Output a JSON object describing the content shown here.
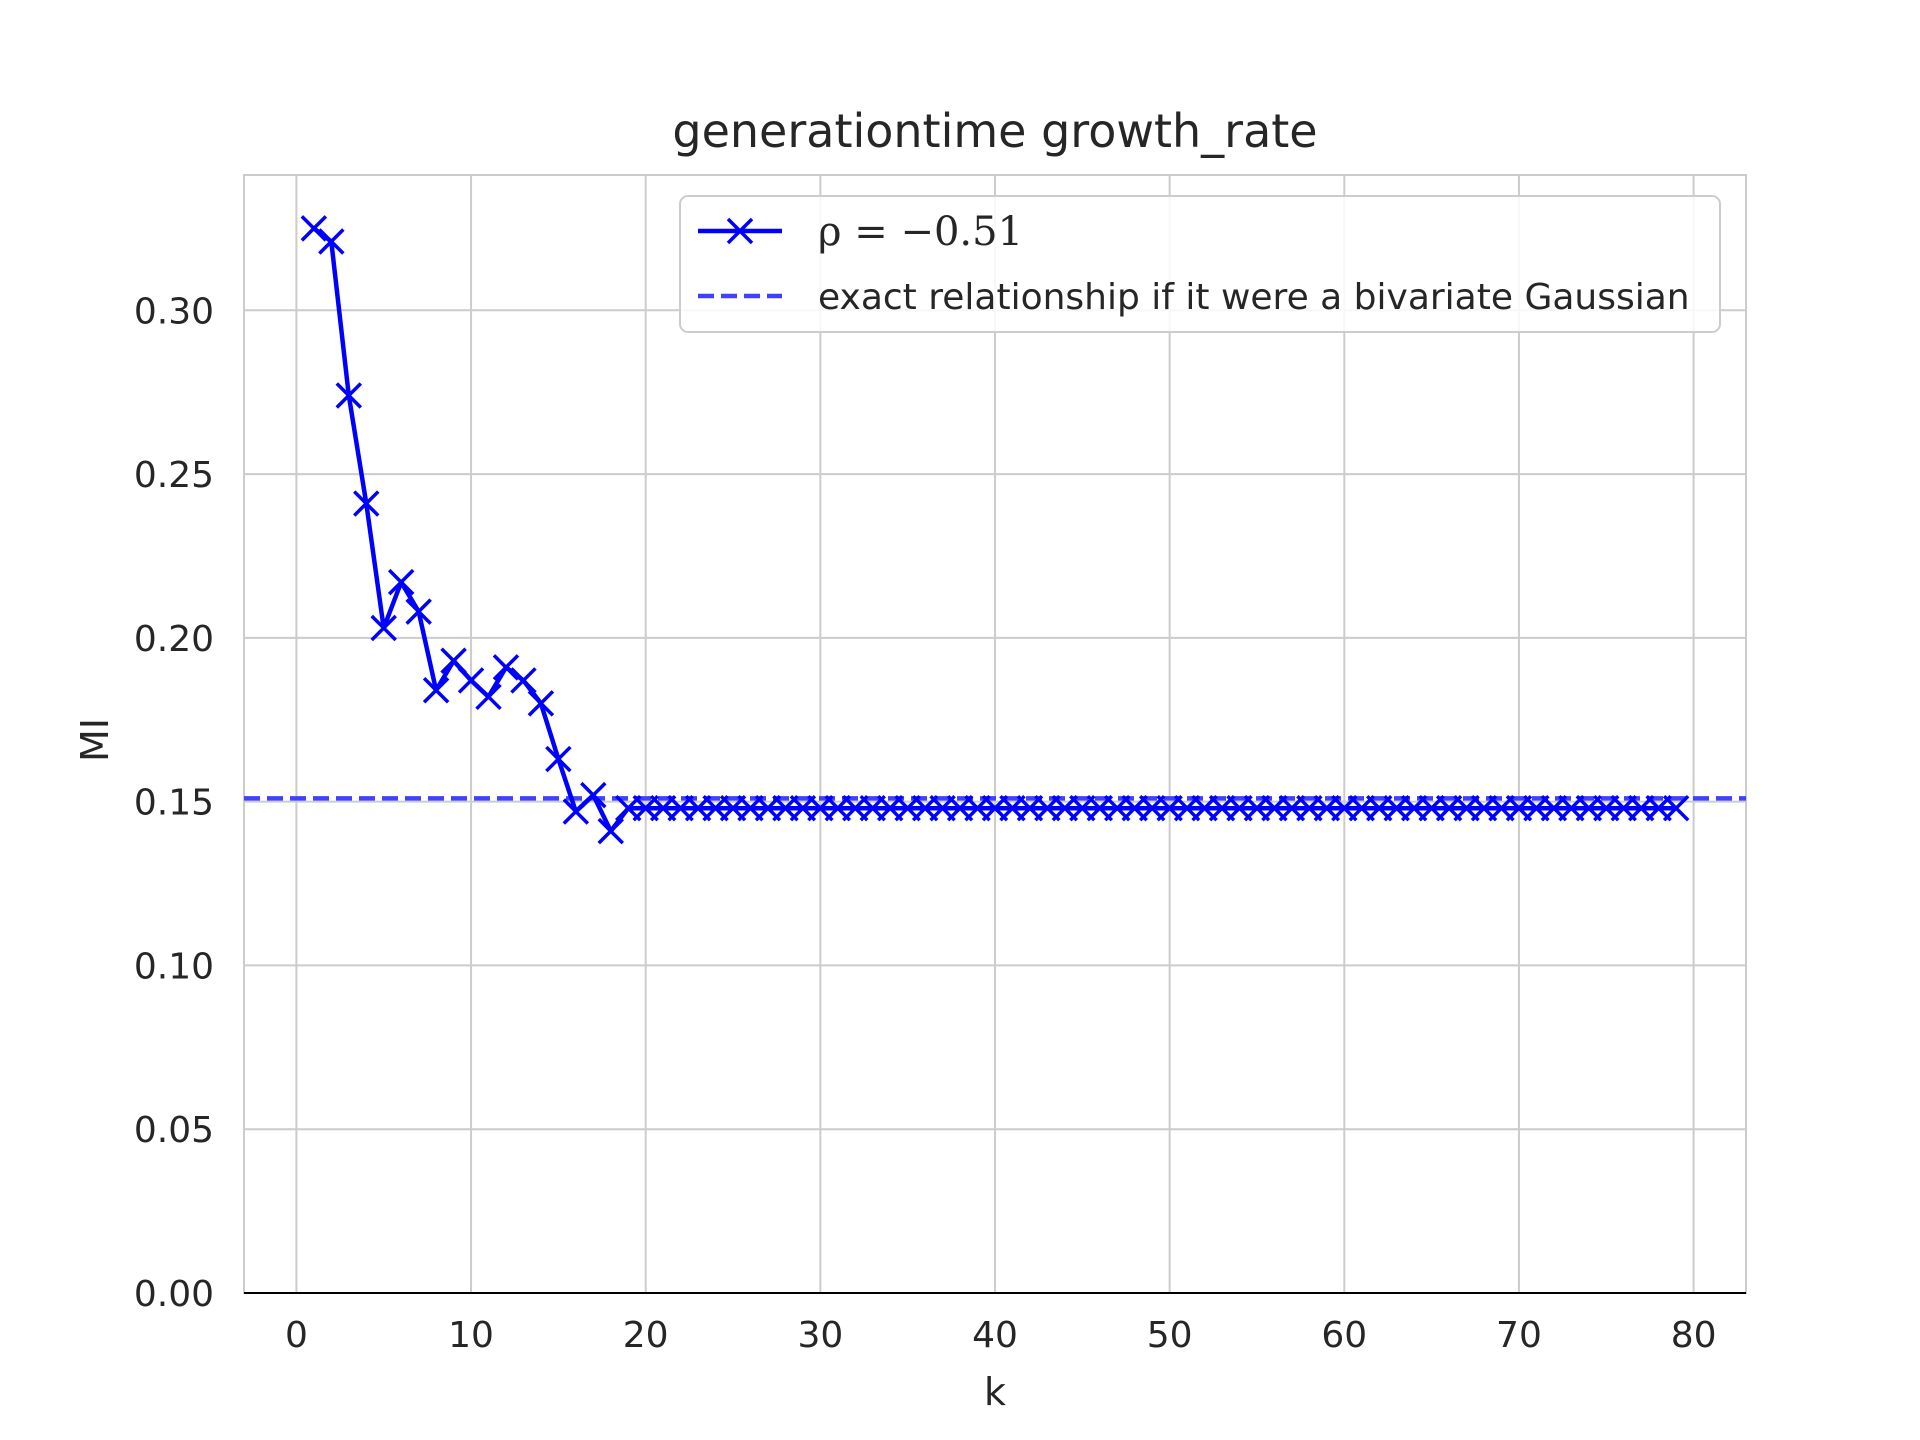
{
  "chart_data": {
    "type": "line",
    "title": "generationtime growth_rate",
    "xlabel": "k",
    "ylabel": "MI",
    "xlim": [
      -3,
      83
    ],
    "ylim": [
      0,
      0.3413
    ],
    "xticks": [
      0,
      10,
      20,
      30,
      40,
      50,
      60,
      70,
      80
    ],
    "xtick_labels": [
      "0",
      "10",
      "20",
      "30",
      "40",
      "50",
      "60",
      "70",
      "80"
    ],
    "yticks": [
      0,
      0.05,
      0.1,
      0.15,
      0.2,
      0.25,
      0.3
    ],
    "ytick_labels": [
      "0.00",
      "0.05",
      "0.10",
      "0.15",
      "0.20",
      "0.25",
      "0.30"
    ],
    "grid": true,
    "legend_position": "top-right",
    "series": [
      {
        "name": "ρ = −0.51",
        "style": "solid",
        "marker": "x",
        "color": "#0000ff",
        "x": [
          1,
          2,
          3,
          4,
          5,
          6,
          7,
          8,
          9,
          10,
          11,
          12,
          13,
          14,
          15,
          16,
          17,
          18,
          19,
          20,
          21,
          22,
          23,
          24,
          25,
          26,
          27,
          28,
          29,
          30,
          31,
          32,
          33,
          34,
          35,
          36,
          37,
          38,
          39,
          40,
          41,
          42,
          43,
          44,
          45,
          46,
          47,
          48,
          49,
          50,
          51,
          52,
          53,
          54,
          55,
          56,
          57,
          58,
          59,
          60,
          61,
          62,
          63,
          64,
          65,
          66,
          67,
          68,
          69,
          70,
          71,
          72,
          73,
          74,
          75,
          76,
          77,
          78,
          79
        ],
        "y": [
          0.325,
          0.321,
          0.274,
          0.241,
          0.203,
          0.217,
          0.208,
          0.184,
          0.193,
          0.187,
          0.182,
          0.191,
          0.187,
          0.18,
          0.163,
          0.147,
          0.152,
          0.141,
          0.148,
          0.148,
          0.148,
          0.148,
          0.148,
          0.148,
          0.148,
          0.148,
          0.148,
          0.148,
          0.148,
          0.148,
          0.148,
          0.148,
          0.148,
          0.148,
          0.148,
          0.148,
          0.148,
          0.148,
          0.148,
          0.148,
          0.148,
          0.148,
          0.148,
          0.148,
          0.148,
          0.148,
          0.148,
          0.148,
          0.148,
          0.148,
          0.148,
          0.148,
          0.148,
          0.148,
          0.148,
          0.148,
          0.148,
          0.148,
          0.148,
          0.148,
          0.148,
          0.148,
          0.148,
          0.148,
          0.148,
          0.148,
          0.148,
          0.148,
          0.148,
          0.148,
          0.148,
          0.148,
          0.148,
          0.148,
          0.148,
          0.148,
          0.148,
          0.148,
          0.148
        ]
      },
      {
        "name": "exact relationship if it were a bivariate Gaussian",
        "style": "dashed",
        "color": "#4040ff",
        "y_constant": 0.151
      }
    ]
  }
}
